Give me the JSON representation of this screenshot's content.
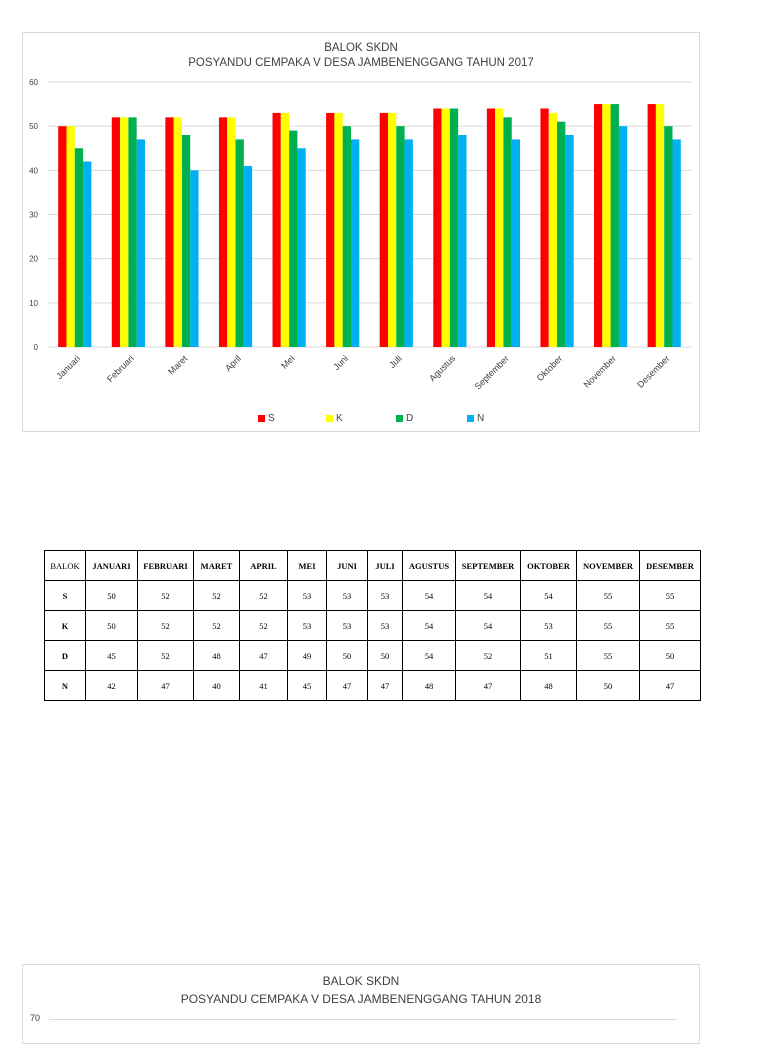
{
  "chart_data": [
    {
      "type": "bar",
      "title": "BALOK SKDN",
      "subtitle": "POSYANDU CEMPAKA V DESA  JAMBENENGGANG TAHUN 2017",
      "categories": [
        "Januari",
        "Februari",
        "Maret",
        "April",
        "Mei",
        "Juni",
        "Juli",
        "Agustus",
        "September",
        "Oktober",
        "November",
        "Desember"
      ],
      "series": [
        {
          "name": "S",
          "color": "#ff0000",
          "values": [
            50,
            52,
            52,
            52,
            53,
            53,
            53,
            54,
            54,
            54,
            55,
            55
          ]
        },
        {
          "name": "K",
          "color": "#ffff00",
          "values": [
            50,
            52,
            52,
            52,
            53,
            53,
            53,
            54,
            54,
            53,
            55,
            55
          ]
        },
        {
          "name": "D",
          "color": "#00b050",
          "values": [
            45,
            52,
            48,
            47,
            49,
            50,
            50,
            54,
            52,
            51,
            55,
            50
          ]
        },
        {
          "name": "N",
          "color": "#00b0f0",
          "values": [
            42,
            47,
            40,
            41,
            45,
            47,
            47,
            48,
            47,
            48,
            50,
            47
          ]
        }
      ],
      "ylim": [
        0,
        60
      ],
      "yticks": [
        0,
        10,
        20,
        30,
        40,
        50,
        60
      ],
      "grid": true,
      "legend": "bottom"
    },
    {
      "type": "bar",
      "title": "BALOK SKDN",
      "subtitle": "POSYANDU CEMPAKA V DESA JAMBENENGGANG TAHUN 2018",
      "yticks_visible": [
        "70"
      ]
    }
  ],
  "table": {
    "corner": "BALOK",
    "headers": [
      "JANUARI",
      "FEBRUARI",
      "MARET",
      "APRIL",
      "MEI",
      "JUNI",
      "JULI",
      "AGUSTUS",
      "SEPTEMBER",
      "OKTOBER",
      "NOVEMBER",
      "DESEMBER"
    ],
    "rows": [
      {
        "label": "S",
        "values": [
          "50",
          "52",
          "52",
          "52",
          "53",
          "53",
          "53",
          "54",
          "54",
          "54",
          "55",
          "55"
        ]
      },
      {
        "label": "K",
        "values": [
          "50",
          "52",
          "52",
          "52",
          "53",
          "53",
          "53",
          "54",
          "54",
          "53",
          "55",
          "55"
        ]
      },
      {
        "label": "D",
        "values": [
          "45",
          "52",
          "48",
          "47",
          "49",
          "50",
          "50",
          "54",
          "52",
          "51",
          "55",
          "50"
        ]
      },
      {
        "label": "N",
        "values": [
          "42",
          "47",
          "40",
          "41",
          "45",
          "47",
          "47",
          "48",
          "47",
          "48",
          "50",
          "47"
        ]
      }
    ]
  }
}
